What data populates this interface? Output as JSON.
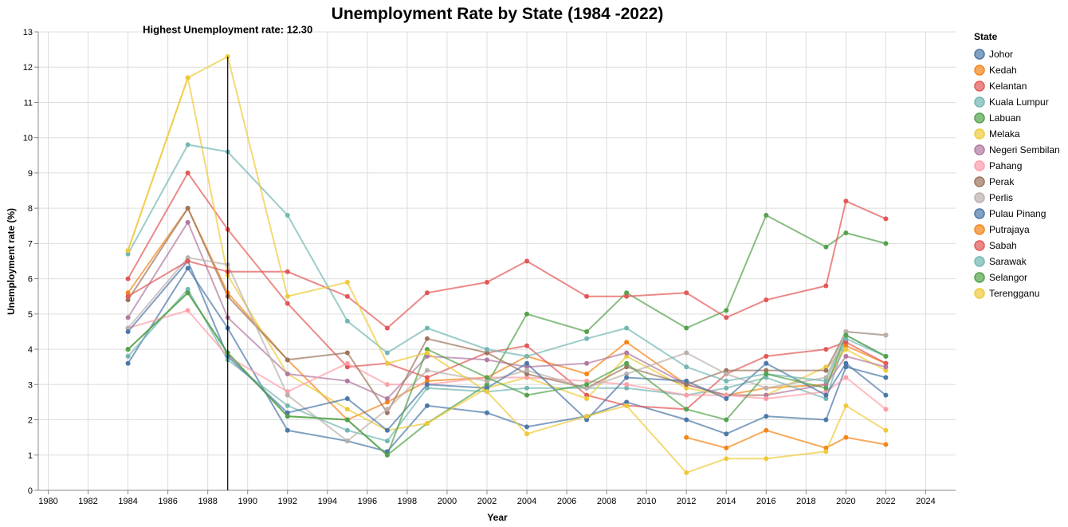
{
  "chart_data": {
    "type": "line",
    "title": "Unemployment Rate by State (1984 -2022)",
    "xlabel": "Year",
    "ylabel": "Unemployment rate (%)",
    "xlim": [
      1979.5,
      2025.5
    ],
    "ylim": [
      0,
      13
    ],
    "x_ticks": [
      1980,
      1982,
      1984,
      1986,
      1988,
      1990,
      1992,
      1994,
      1996,
      1998,
      2000,
      2002,
      2004,
      2006,
      2008,
      2010,
      2012,
      2014,
      2016,
      2018,
      2020,
      2022,
      2024
    ],
    "y_ticks": [
      0,
      1,
      2,
      3,
      4,
      5,
      6,
      7,
      8,
      9,
      10,
      11,
      12,
      13
    ],
    "grid": true,
    "legend_title": "State",
    "legend_position": "right",
    "annotation": {
      "text": "Highest Unemployment rate: 12.30",
      "x": 1989,
      "y": 12.3
    },
    "x": [
      1984,
      1987,
      1989,
      1992,
      1995,
      1997,
      1999,
      2002,
      2004,
      2007,
      2009,
      2012,
      2014,
      2016,
      2019,
      2020,
      2022
    ],
    "series": [
      {
        "name": "Johor",
        "color": "#4c78a8",
        "values": [
          3.6,
          6.3,
          4.6,
          1.7,
          1.4,
          1.1,
          2.4,
          2.2,
          1.8,
          2.1,
          2.5,
          2.0,
          1.6,
          2.1,
          2.0,
          3.5,
          3.2
        ]
      },
      {
        "name": "Kedah",
        "color": "#f58518",
        "values": [
          5.6,
          8.0,
          5.6,
          3.7,
          2.0,
          2.5,
          3.1,
          3.2,
          3.8,
          3.3,
          4.2,
          3.0,
          2.7,
          2.9,
          3.0,
          4.1,
          3.6
        ]
      },
      {
        "name": "Kelantan",
        "color": "#e45756",
        "values": [
          6.0,
          9.0,
          7.4,
          5.3,
          3.5,
          3.6,
          3.2,
          3.9,
          4.1,
          2.7,
          2.4,
          2.3,
          3.3,
          3.8,
          4.0,
          4.2,
          3.6
        ]
      },
      {
        "name": "Kuala Lumpur",
        "color": "#72b7b2",
        "values": [
          3.8,
          5.7,
          3.7,
          2.4,
          1.7,
          1.4,
          2.9,
          2.8,
          2.9,
          2.9,
          2.9,
          2.7,
          2.9,
          3.2,
          2.6,
          4.3,
          3.8
        ]
      },
      {
        "name": "Labuan",
        "color": "#54a24b",
        "values": [
          4.0,
          5.6,
          3.9,
          2.1,
          2.0,
          1.0,
          1.9,
          3.0,
          5.0,
          4.5,
          5.6,
          4.6,
          5.1,
          7.8,
          6.9,
          7.3,
          7.0
        ]
      },
      {
        "name": "Melaka",
        "color": "#eeca3b",
        "values": [
          6.8,
          11.7,
          6.1,
          3.3,
          2.3,
          1.7,
          1.9,
          2.9,
          3.2,
          2.6,
          3.8,
          2.9,
          2.7,
          2.7,
          3.5,
          4.0,
          3.4
        ]
      },
      {
        "name": "Negeri Sembilan",
        "color": "#b279a2",
        "values": [
          4.9,
          7.6,
          4.9,
          3.3,
          3.1,
          2.6,
          3.8,
          3.7,
          3.5,
          3.6,
          3.9,
          3.0,
          2.7,
          2.7,
          3.0,
          3.8,
          3.5
        ]
      },
      {
        "name": "Pahang",
        "color": "#ff9da6",
        "values": [
          4.6,
          5.1,
          3.8,
          2.8,
          3.6,
          3.0,
          3.0,
          3.2,
          3.2,
          3.1,
          3.0,
          2.7,
          2.7,
          2.6,
          2.8,
          3.2,
          2.3
        ]
      },
      {
        "name": "Perak",
        "color": "#9d755d",
        "values": [
          5.4,
          8.0,
          5.5,
          3.7,
          3.9,
          2.2,
          4.3,
          3.9,
          3.3,
          2.9,
          3.5,
          3.0,
          3.4,
          3.4,
          3.4,
          4.5,
          4.4
        ]
      },
      {
        "name": "Perlis",
        "color": "#bab0ac",
        "values": [
          4.6,
          6.6,
          6.4,
          2.7,
          1.4,
          2.3,
          3.4,
          3.1,
          3.4,
          2.9,
          3.3,
          3.9,
          3.3,
          2.9,
          3.2,
          4.5,
          4.4
        ]
      },
      {
        "name": "Pulau Pinang",
        "color": "#4c78a8",
        "values": [
          4.5,
          6.5,
          3.8,
          2.2,
          2.6,
          1.7,
          3.0,
          2.9,
          3.6,
          2.0,
          3.2,
          3.1,
          2.6,
          3.6,
          2.7,
          3.6,
          2.7
        ]
      },
      {
        "name": "Putrajaya",
        "color": "#f58518",
        "values": [
          null,
          null,
          null,
          null,
          null,
          null,
          null,
          null,
          null,
          null,
          null,
          1.5,
          1.2,
          1.7,
          1.2,
          1.5,
          1.3
        ]
      },
      {
        "name": "Sabah",
        "color": "#e45756",
        "values": [
          5.5,
          6.5,
          6.2,
          6.2,
          5.5,
          4.6,
          5.6,
          5.9,
          6.5,
          5.5,
          5.5,
          5.6,
          4.9,
          5.4,
          5.8,
          8.2,
          7.7
        ]
      },
      {
        "name": "Sarawak",
        "color": "#72b7b2",
        "values": [
          6.7,
          9.8,
          9.6,
          7.8,
          4.8,
          3.9,
          4.6,
          4.0,
          3.8,
          4.3,
          4.6,
          3.5,
          3.1,
          3.3,
          3.1,
          4.4,
          3.8
        ]
      },
      {
        "name": "Selangor",
        "color": "#54a24b",
        "values": [
          4.0,
          5.6,
          3.9,
          2.1,
          2.0,
          1.0,
          4.0,
          3.2,
          2.7,
          3.0,
          3.6,
          2.3,
          2.0,
          3.3,
          2.9,
          4.4,
          3.8
        ]
      },
      {
        "name": "Terengganu",
        "color": "#eeca3b",
        "values": [
          6.8,
          11.7,
          12.3,
          5.5,
          5.9,
          3.6,
          3.9,
          2.8,
          1.6,
          2.1,
          2.4,
          0.5,
          0.9,
          0.9,
          1.1,
          2.4,
          1.7
        ]
      }
    ]
  }
}
